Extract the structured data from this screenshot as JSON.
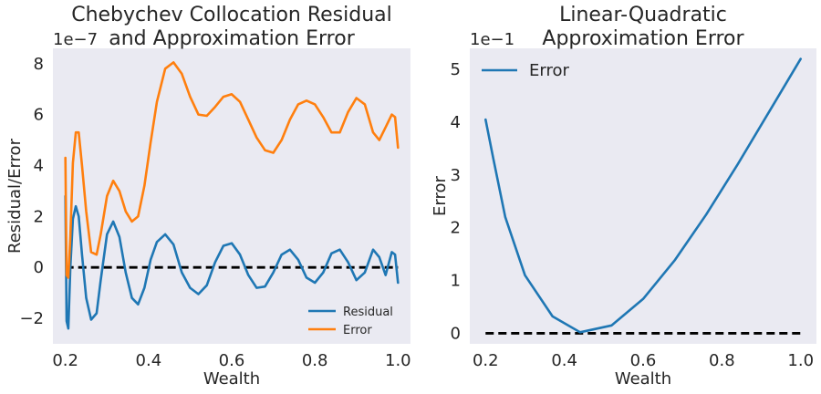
{
  "chart_data": [
    {
      "type": "line",
      "title_lines": [
        "Chebychev Collocation Residual",
        "and Approximation Error"
      ],
      "xlabel": "Wealth",
      "ylabel": "Residual/Error",
      "y_offset_text": "1e−7",
      "xlim": [
        0.17,
        1.03
      ],
      "ylim": [
        -3.0,
        8.6
      ],
      "xticks": [
        0.2,
        0.4,
        0.6,
        0.8,
        1.0
      ],
      "xtick_labels": [
        "0.2",
        "0.4",
        "0.6",
        "0.8",
        "1.0"
      ],
      "yticks": [
        -2,
        0,
        2,
        4,
        6,
        8
      ],
      "ytick_labels": [
        "−2",
        "0",
        "2",
        "4",
        "6",
        "8"
      ],
      "legend_position": "lower-right",
      "series": [
        {
          "name": "Residual",
          "color": "#1f77b4",
          "x": [
            0.2,
            0.203,
            0.207,
            0.212,
            0.218,
            0.225,
            0.232,
            0.24,
            0.25,
            0.262,
            0.275,
            0.285,
            0.3,
            0.315,
            0.33,
            0.345,
            0.36,
            0.375,
            0.39,
            0.405,
            0.42,
            0.44,
            0.46,
            0.48,
            0.5,
            0.52,
            0.54,
            0.56,
            0.58,
            0.6,
            0.62,
            0.64,
            0.66,
            0.68,
            0.7,
            0.72,
            0.74,
            0.76,
            0.78,
            0.8,
            0.82,
            0.84,
            0.86,
            0.88,
            0.9,
            0.92,
            0.94,
            0.955,
            0.97,
            0.985,
            0.993,
            1.0
          ],
          "y": [
            2.8,
            -2.1,
            -2.4,
            0.0,
            1.9,
            2.4,
            2.0,
            0.5,
            -1.2,
            -2.05,
            -1.8,
            -0.5,
            1.3,
            1.8,
            1.2,
            -0.2,
            -1.2,
            -1.45,
            -0.8,
            0.3,
            1.0,
            1.3,
            0.9,
            -0.2,
            -0.8,
            -1.05,
            -0.7,
            0.2,
            0.85,
            0.95,
            0.5,
            -0.3,
            -0.8,
            -0.75,
            -0.2,
            0.5,
            0.7,
            0.3,
            -0.4,
            -0.6,
            -0.2,
            0.55,
            0.7,
            0.2,
            -0.5,
            -0.2,
            0.7,
            0.4,
            -0.3,
            0.6,
            0.5,
            -0.6
          ]
        },
        {
          "name": "Error",
          "color": "#ff7f0e",
          "x": [
            0.2,
            0.203,
            0.207,
            0.212,
            0.218,
            0.225,
            0.232,
            0.24,
            0.25,
            0.262,
            0.275,
            0.285,
            0.3,
            0.315,
            0.33,
            0.345,
            0.36,
            0.375,
            0.39,
            0.405,
            0.42,
            0.44,
            0.46,
            0.48,
            0.5,
            0.52,
            0.54,
            0.56,
            0.58,
            0.6,
            0.62,
            0.64,
            0.66,
            0.68,
            0.7,
            0.72,
            0.74,
            0.76,
            0.78,
            0.8,
            0.82,
            0.84,
            0.86,
            0.88,
            0.9,
            0.92,
            0.94,
            0.955,
            0.97,
            0.985,
            0.993,
            1.0
          ],
          "y": [
            4.3,
            -0.3,
            -0.4,
            1.2,
            4.1,
            5.3,
            5.3,
            4.0,
            2.2,
            0.6,
            0.5,
            1.3,
            2.8,
            3.4,
            3.0,
            2.2,
            1.8,
            2.0,
            3.2,
            4.9,
            6.5,
            7.8,
            8.05,
            7.6,
            6.7,
            6.0,
            5.95,
            6.3,
            6.7,
            6.8,
            6.5,
            5.8,
            5.1,
            4.6,
            4.5,
            5.0,
            5.8,
            6.4,
            6.55,
            6.4,
            5.9,
            5.3,
            5.3,
            6.1,
            6.65,
            6.4,
            5.3,
            5.0,
            5.5,
            6.0,
            5.9,
            4.7
          ]
        }
      ],
      "baseline": {
        "y": 0,
        "color": "#000000",
        "style": "dashed"
      }
    },
    {
      "type": "line",
      "title_lines": [
        "Linear-Quadratic",
        "Approximation Error"
      ],
      "xlabel": "Wealth",
      "ylabel": "Error",
      "y_offset_text": "1e−1",
      "xlim": [
        0.16,
        1.04
      ],
      "ylim": [
        -0.2,
        5.4
      ],
      "xticks": [
        0.2,
        0.4,
        0.6,
        0.8,
        1.0
      ],
      "xtick_labels": [
        "0.2",
        "0.4",
        "0.6",
        "0.8",
        "1.0"
      ],
      "yticks": [
        0,
        1,
        2,
        3,
        4,
        5
      ],
      "ytick_labels": [
        "0",
        "1",
        "2",
        "3",
        "4",
        "5"
      ],
      "legend_position": "top-left",
      "series": [
        {
          "name": "Error",
          "color": "#1f77b4",
          "x": [
            0.2,
            0.22,
            0.25,
            0.3,
            0.37,
            0.44,
            0.52,
            0.6,
            0.68,
            0.76,
            0.84,
            0.92,
            1.0
          ],
          "y": [
            4.05,
            3.3,
            2.2,
            1.1,
            0.32,
            0.02,
            0.15,
            0.65,
            1.38,
            2.25,
            3.2,
            4.2,
            5.2
          ]
        }
      ],
      "baseline": {
        "y": 0,
        "color": "#000000",
        "style": "dashed"
      }
    }
  ]
}
